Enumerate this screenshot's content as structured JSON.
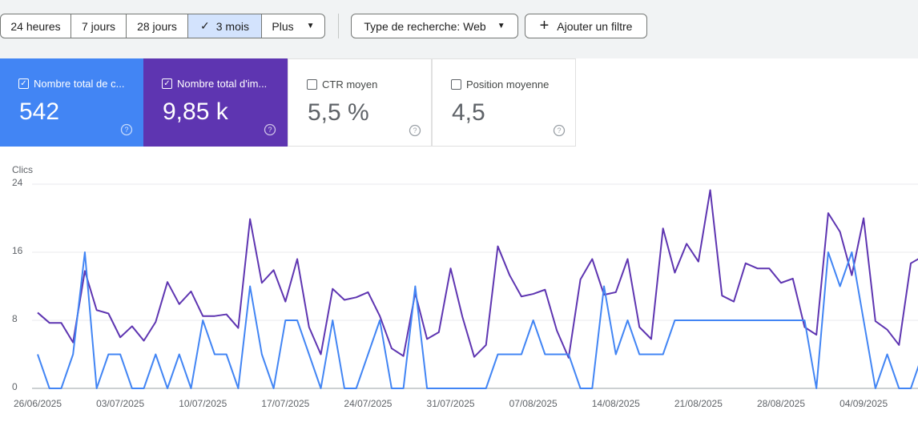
{
  "toolbar": {
    "ranges": [
      "24 heures",
      "7 jours",
      "28 jours",
      "3 mois",
      "Plus"
    ],
    "selected": 3,
    "search_type": "Type de recherche: Web",
    "add_filter": "Ajouter un filtre"
  },
  "cards": [
    {
      "label": "Nombre total de c...",
      "value": "542",
      "checked": true,
      "color": "#4285f4"
    },
    {
      "label": "Nombre total d'im...",
      "value": "9,85 k",
      "checked": true,
      "color": "#5e35b1"
    },
    {
      "label": "CTR moyen",
      "value": "5,5 %",
      "checked": false,
      "color": "#ffffff"
    },
    {
      "label": "Position moyenne",
      "value": "4,5",
      "checked": false,
      "color": "#ffffff"
    }
  ],
  "chart_data": {
    "type": "line",
    "y_label": "Clics",
    "categories": [
      "26/06/2025",
      null,
      null,
      null,
      null,
      null,
      null,
      "03/07/2025",
      null,
      null,
      null,
      null,
      null,
      null,
      "10/07/2025",
      null,
      null,
      null,
      null,
      null,
      null,
      "17/07/2025",
      null,
      null,
      null,
      null,
      null,
      null,
      "24/07/2025",
      null,
      null,
      null,
      null,
      null,
      null,
      "31/07/2025",
      null,
      null,
      null,
      null,
      null,
      null,
      "07/08/2025",
      null,
      null,
      null,
      null,
      null,
      null,
      "14/08/2025",
      null,
      null,
      null,
      null,
      null,
      null,
      "21/08/2025",
      null,
      null,
      null,
      null,
      null,
      null,
      "28/08/2025",
      null,
      null,
      null,
      null,
      null,
      null,
      "04/09/2025",
      null,
      null,
      null,
      null,
      null
    ],
    "series": [
      {
        "color": "#5e35b1",
        "values": [
          8.9,
          7.7,
          7.7,
          5.4,
          13.8,
          9.2,
          8.8,
          6.0,
          7.3,
          5.6,
          7.8,
          12.5,
          9.9,
          11.4,
          8.5,
          8.5,
          8.7,
          7.1,
          19.9,
          12.4,
          13.9,
          10.2,
          15.2,
          7.2,
          4.0,
          11.7,
          10.4,
          10.7,
          11.3,
          8.5,
          4.7,
          3.8,
          11.2,
          5.8,
          6.6,
          14.1,
          8.4,
          3.7,
          5.1,
          16.7,
          13.3,
          10.8,
          11.1,
          11.6,
          6.8,
          3.6,
          12.8,
          15.2,
          11.0,
          11.3,
          15.2,
          7.2,
          5.8,
          18.8,
          13.6,
          17.0,
          14.9,
          23.3,
          10.9,
          10.2,
          14.7,
          14.1,
          14.1,
          12.4,
          12.9,
          7.2,
          6.3,
          20.6,
          18.4,
          13.3,
          20.0,
          7.9,
          6.9,
          5.1,
          14.7,
          15.5
        ]
      },
      {
        "color": "#4285f4",
        "values": [
          4,
          0,
          0,
          4,
          16,
          0,
          4,
          4,
          0,
          0,
          4,
          0,
          4,
          0,
          8,
          4,
          4,
          0,
          12,
          4,
          0,
          8,
          8,
          4,
          0,
          8,
          0,
          0,
          4,
          8,
          0,
          0,
          12,
          0,
          0,
          0,
          0,
          0,
          0,
          4,
          4,
          4,
          8,
          4,
          4,
          4,
          0,
          0,
          12,
          4,
          8,
          4,
          4,
          4,
          8,
          8,
          8,
          8,
          8,
          8,
          8,
          8,
          8,
          8,
          8,
          8,
          0,
          16,
          12,
          16,
          8,
          0,
          4,
          0,
          0,
          4
        ]
      }
    ],
    "ylim": [
      0,
      24
    ],
    "yticks": [
      0,
      8,
      16,
      24
    ],
    "grid": true
  }
}
